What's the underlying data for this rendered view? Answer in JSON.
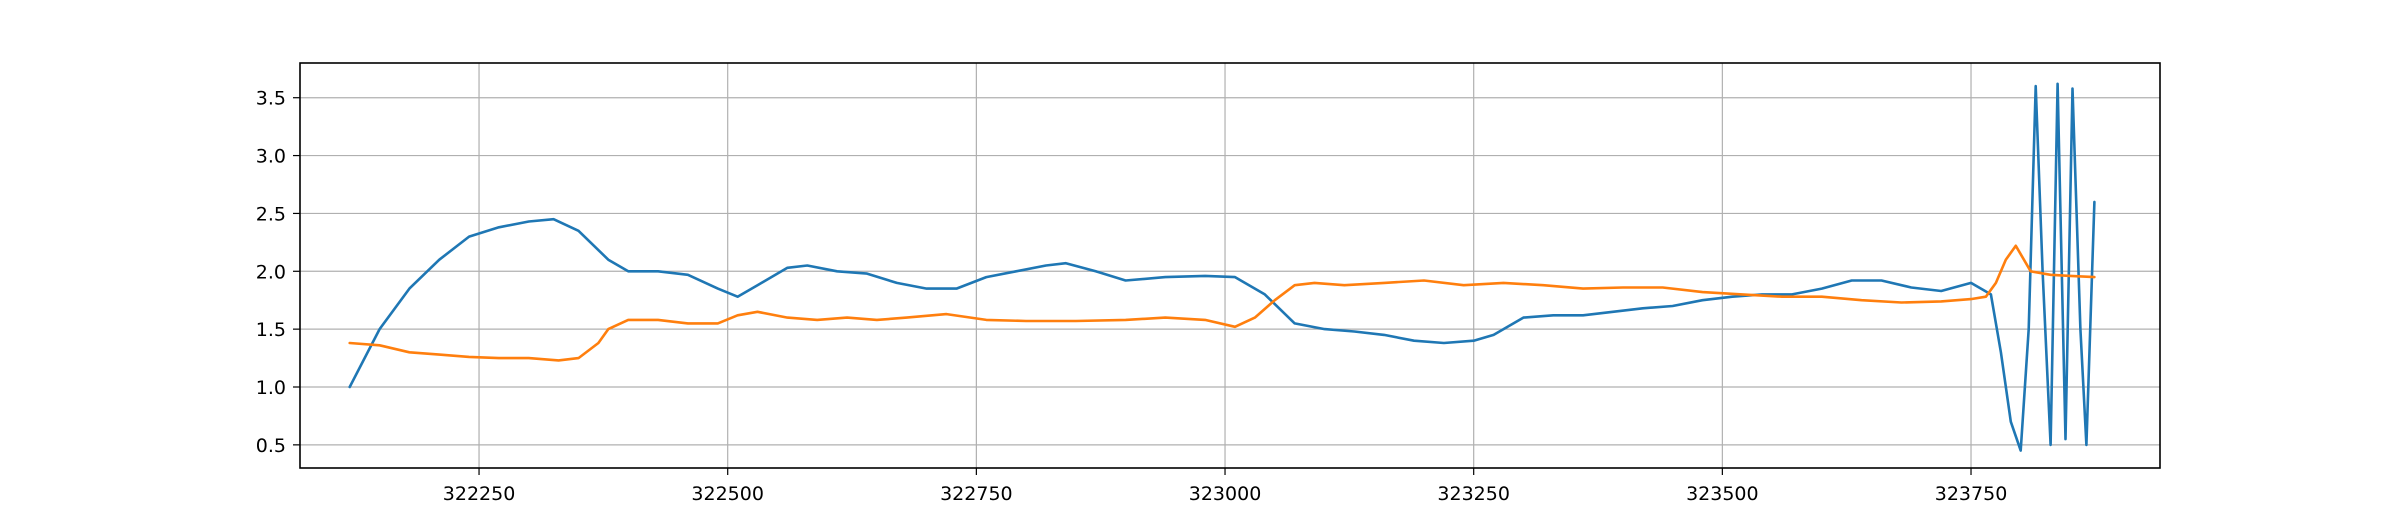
{
  "chart_data": {
    "type": "line",
    "title": "",
    "xlabel": "",
    "ylabel": "",
    "xlim": [
      322070,
      323940
    ],
    "ylim": [
      0.3,
      3.8
    ],
    "grid": true,
    "xticks": [
      322250,
      322500,
      322750,
      323000,
      323250,
      323500,
      323750
    ],
    "yticks": [
      0.5,
      1.0,
      1.5,
      2.0,
      2.5,
      3.0,
      3.5
    ],
    "xtick_labels": [
      "322250",
      "322500",
      "322750",
      "323000",
      "323250",
      "323500",
      "323750"
    ],
    "ytick_labels": [
      "0.5",
      "1.0",
      "1.5",
      "2.0",
      "2.5",
      "3.0",
      "3.5"
    ],
    "series": [
      {
        "color": "#1f77b4",
        "x": [
          322120,
          322150,
          322180,
          322210,
          322240,
          322270,
          322300,
          322325,
          322350,
          322380,
          322400,
          322430,
          322460,
          322490,
          322510,
          322530,
          322560,
          322580,
          322610,
          322640,
          322670,
          322700,
          322730,
          322760,
          322790,
          322820,
          322840,
          322870,
          322900,
          322940,
          322980,
          323010,
          323040,
          323070,
          323100,
          323130,
          323160,
          323190,
          323220,
          323250,
          323270,
          323300,
          323330,
          323360,
          323390,
          323420,
          323450,
          323480,
          323510,
          323540,
          323570,
          323600,
          323630,
          323660,
          323690,
          323720,
          323750,
          323770,
          323780,
          323790,
          323800,
          323808,
          323815,
          323822,
          323830,
          323837,
          323845,
          323852,
          323860,
          323866,
          323874
        ],
        "y": [
          1.0,
          1.5,
          1.85,
          2.1,
          2.3,
          2.38,
          2.43,
          2.45,
          2.35,
          2.1,
          2.0,
          2.0,
          1.97,
          1.85,
          1.78,
          1.88,
          2.03,
          2.05,
          2.0,
          1.98,
          1.9,
          1.85,
          1.85,
          1.95,
          2.0,
          2.05,
          2.07,
          2.0,
          1.92,
          1.95,
          1.96,
          1.95,
          1.8,
          1.55,
          1.5,
          1.48,
          1.45,
          1.4,
          1.38,
          1.4,
          1.45,
          1.6,
          1.62,
          1.62,
          1.65,
          1.68,
          1.7,
          1.75,
          1.78,
          1.8,
          1.8,
          1.85,
          1.92,
          1.92,
          1.86,
          1.83,
          1.9,
          1.8,
          1.3,
          0.7,
          0.45,
          1.5,
          3.6,
          2.0,
          0.5,
          3.62,
          0.55,
          3.58,
          1.5,
          0.5,
          2.6
        ]
      },
      {
        "color": "#ff7f0e",
        "x": [
          322120,
          322150,
          322180,
          322210,
          322240,
          322270,
          322300,
          322330,
          322350,
          322370,
          322380,
          322400,
          322430,
          322460,
          322490,
          322510,
          322530,
          322560,
          322590,
          322620,
          322650,
          322680,
          322720,
          322760,
          322800,
          322850,
          322900,
          322940,
          322980,
          323010,
          323030,
          323050,
          323070,
          323090,
          323120,
          323160,
          323200,
          323240,
          323280,
          323320,
          323360,
          323400,
          323440,
          323480,
          323520,
          323560,
          323600,
          323640,
          323680,
          323720,
          323750,
          323765,
          323775,
          323785,
          323795,
          323810,
          323830,
          323850,
          323874
        ],
        "y": [
          1.38,
          1.36,
          1.3,
          1.28,
          1.26,
          1.25,
          1.25,
          1.23,
          1.25,
          1.38,
          1.5,
          1.58,
          1.58,
          1.55,
          1.55,
          1.62,
          1.65,
          1.6,
          1.58,
          1.6,
          1.58,
          1.6,
          1.63,
          1.58,
          1.57,
          1.57,
          1.58,
          1.6,
          1.58,
          1.52,
          1.6,
          1.75,
          1.88,
          1.9,
          1.88,
          1.9,
          1.92,
          1.88,
          1.9,
          1.88,
          1.85,
          1.86,
          1.86,
          1.82,
          1.8,
          1.78,
          1.78,
          1.75,
          1.73,
          1.74,
          1.76,
          1.78,
          1.9,
          2.1,
          2.22,
          2.0,
          1.97,
          1.96,
          1.95
        ]
      }
    ]
  }
}
